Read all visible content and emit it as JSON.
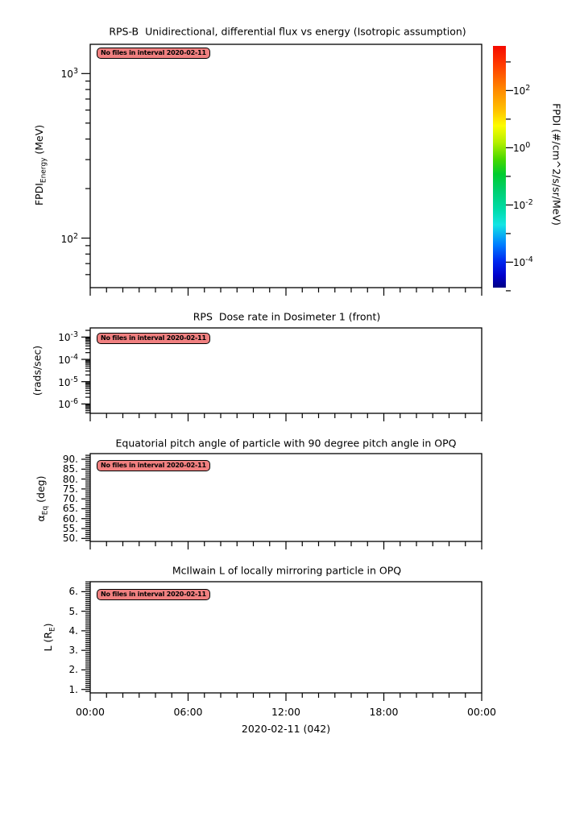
{
  "figure": {
    "background_color": "#ffffff",
    "annotation_bg_color": "#f08080",
    "xaxis": {
      "tick_labels": [
        "00:00",
        "06:00",
        "12:00",
        "18:00",
        "00:00"
      ],
      "label": "2020-02-11 (042)",
      "hours_total": 24,
      "major_every_hours": 6,
      "minor_every_hours": 1
    }
  },
  "chart_data": [
    {
      "type": "heatmap",
      "title": "RPS-B  Unidirectional, differential flux vs energy (Isotropic assumption)",
      "ylabel": "FPDI_Energy (MeV)",
      "ylabel_parts": [
        {
          "t": "FPDI"
        },
        {
          "t": "Energy",
          "sub": true
        },
        {
          "t": " (MeV)"
        }
      ],
      "yscale": "log",
      "ylim": [
        50,
        1506
      ],
      "ytick_exponents": [
        3,
        2
      ],
      "yticks": [
        {
          "base": "10",
          "exp": "3"
        },
        {
          "base": "10",
          "exp": "2"
        }
      ],
      "series": [],
      "no_data_note": "No files in interval 2020-02-11",
      "colorbar": {
        "label": "FPDI (#/cm^2/s/sr/MeV)",
        "ticks": [
          {
            "base": "10",
            "exp": "2"
          },
          {
            "base": "10",
            "exp": "0"
          },
          {
            "base": "10",
            "exp": "-2"
          },
          {
            "base": "10",
            "exp": "-4"
          }
        ],
        "tick_exponents": [
          2,
          0,
          -2,
          -4
        ],
        "minor_tick_exponents": [
          3,
          1,
          -1,
          -3,
          -5
        ],
        "exp_range_top_bottom": [
          3.56,
          -4.89
        ],
        "gradient_stops": [
          {
            "offset": 0.0,
            "color": "#f50a00"
          },
          {
            "offset": 0.08,
            "color": "#ff3c00"
          },
          {
            "offset": 0.18,
            "color": "#ff8800"
          },
          {
            "offset": 0.27,
            "color": "#ffc400"
          },
          {
            "offset": 0.33,
            "color": "#fdfd00"
          },
          {
            "offset": 0.4,
            "color": "#b4ef00"
          },
          {
            "offset": 0.47,
            "color": "#46d800"
          },
          {
            "offset": 0.53,
            "color": "#00cc2e"
          },
          {
            "offset": 0.6,
            "color": "#00cf70"
          },
          {
            "offset": 0.68,
            "color": "#00dcab"
          },
          {
            "offset": 0.74,
            "color": "#14e4e4"
          },
          {
            "offset": 0.82,
            "color": "#0080ff"
          },
          {
            "offset": 0.89,
            "color": "#0028f0"
          },
          {
            "offset": 0.95,
            "color": "#0000cc"
          },
          {
            "offset": 1.0,
            "color": "#000084"
          }
        ]
      }
    },
    {
      "type": "line",
      "title": "RPS  Dose rate in Dosimeter 1 (front)",
      "ylabel": "(rads/sec)",
      "ylabel_parts": [
        {
          "t": "(rads/sec)"
        }
      ],
      "yscale": "log",
      "ylim": [
        3.8e-07,
        0.00257
      ],
      "ytick_exponents": [
        -3,
        -4,
        -5,
        -6
      ],
      "yticks": [
        {
          "base": "10",
          "exp": "-3"
        },
        {
          "base": "10",
          "exp": "-4"
        },
        {
          "base": "10",
          "exp": "-5"
        },
        {
          "base": "10",
          "exp": "-6"
        }
      ],
      "series": [],
      "no_data_note": "No files in interval 2020-02-11"
    },
    {
      "type": "line",
      "title": "Equatorial pitch angle of particle with 90 degree pitch angle in OPQ",
      "ylabel": "α_Eq (deg)",
      "ylabel_parts": [
        {
          "t": "α"
        },
        {
          "t": "Eq",
          "sub": true
        },
        {
          "t": " (deg)"
        }
      ],
      "yscale": "linear",
      "ylim": [
        48.5,
        92.85
      ],
      "ytick_values": [
        90,
        85,
        80,
        75,
        70,
        65,
        60,
        55,
        50
      ],
      "ytick_labels": [
        "90.",
        "85.",
        "80.",
        "75.",
        "70.",
        "65.",
        "60.",
        "55.",
        "50."
      ],
      "minor_step": 1,
      "series": [],
      "no_data_note": "No files in interval 2020-02-11"
    },
    {
      "type": "line",
      "title": "McIlwain L of locally mirroring particle in OPQ",
      "ylabel": "L (R_E)",
      "ylabel_parts": [
        {
          "t": "L (R"
        },
        {
          "t": "E",
          "sub": true
        },
        {
          "t": ")"
        }
      ],
      "yscale": "linear",
      "ylim": [
        0.823,
        6.51
      ],
      "ytick_values": [
        6,
        5,
        4,
        3,
        2,
        1
      ],
      "ytick_labels": [
        "6.",
        "5.",
        "4.",
        "3.",
        "2.",
        "1."
      ],
      "minor_step": 0.1,
      "series": [],
      "no_data_note": "No files in interval 2020-02-11"
    }
  ]
}
